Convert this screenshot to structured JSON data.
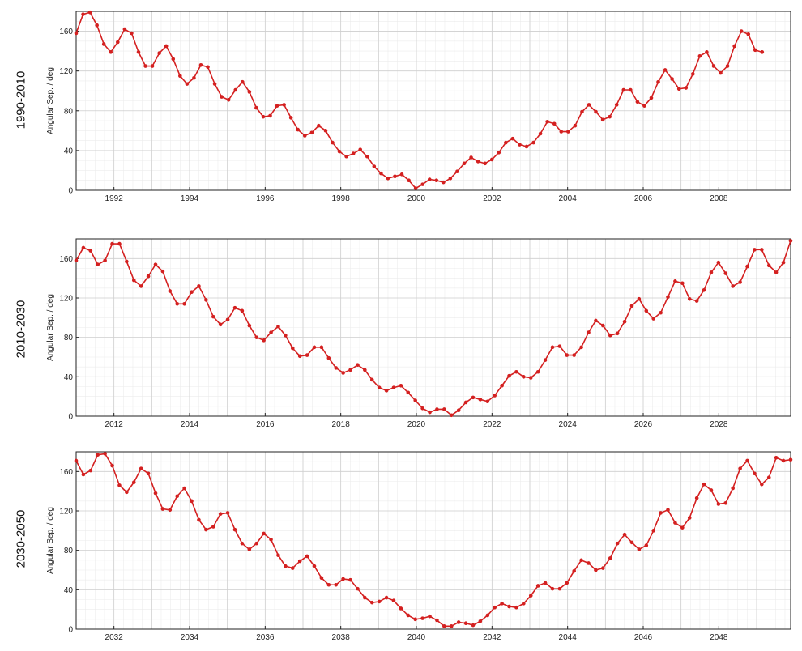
{
  "colors": {
    "line": "#d42020",
    "grid_major": "#cfcfcf",
    "grid_minor": "#ececec",
    "frame": "#222222"
  },
  "chart_data": [
    {
      "type": "line",
      "period_label": "1990-2010",
      "ylabel": "Angular Sep. / deg",
      "xlim": [
        1991.0,
        2009.9
      ],
      "ylim": [
        0,
        180
      ],
      "x_ticks": [
        1992,
        1994,
        1996,
        1998,
        2000,
        2002,
        2004,
        2006,
        2008
      ],
      "y_ticks": [
        0,
        40,
        80,
        120,
        160
      ],
      "grid": true,
      "series": [
        {
          "x_start": 1991.0,
          "x_step": 0.1833,
          "values": [
            158,
            177,
            179,
            166,
            147,
            139,
            149,
            162,
            158,
            139,
            125,
            125,
            138,
            145,
            132,
            115,
            107,
            113,
            126,
            124,
            107,
            94,
            91,
            101,
            109,
            99,
            83,
            74,
            75,
            85,
            86,
            73,
            61,
            55,
            58,
            65,
            60,
            48,
            39,
            34,
            37,
            41,
            34,
            24,
            17,
            12,
            14,
            16,
            10,
            2,
            6,
            11,
            10,
            8,
            12,
            19,
            27,
            33,
            29,
            27,
            31,
            38,
            48,
            52,
            46,
            44,
            48,
            57,
            69,
            67,
            59,
            59,
            65,
            79,
            86,
            79,
            71,
            74,
            86,
            101,
            101,
            89,
            85,
            93,
            109,
            121,
            112,
            102,
            103,
            117,
            135,
            139,
            125,
            118,
            125,
            145,
            160,
            157,
            141,
            139
          ]
        }
      ]
    },
    {
      "type": "line",
      "period_label": "2010-2030",
      "ylabel": "Angular Sep. / deg",
      "xlim": [
        2011.0,
        2029.9
      ],
      "ylim": [
        0,
        180
      ],
      "x_ticks": [
        2012,
        2014,
        2016,
        2018,
        2020,
        2022,
        2024,
        2026,
        2028
      ],
      "y_ticks": [
        0,
        40,
        80,
        120,
        160
      ],
      "grid": true,
      "series": [
        {
          "x_start": 2011.0,
          "x_step": 0.1909,
          "values": [
            158,
            171,
            168,
            154,
            158,
            175,
            175,
            157,
            138,
            132,
            142,
            154,
            147,
            127,
            114,
            114,
            126,
            132,
            118,
            101,
            93,
            98,
            110,
            107,
            92,
            80,
            77,
            85,
            91,
            82,
            69,
            61,
            62,
            70,
            70,
            59,
            49,
            44,
            47,
            52,
            47,
            37,
            29,
            26,
            29,
            31,
            24,
            16,
            8,
            4,
            7,
            7,
            1,
            6,
            14,
            19,
            17,
            15,
            21,
            31,
            41,
            45,
            40,
            39,
            45,
            57,
            70,
            71,
            62,
            62,
            70,
            85,
            97,
            92,
            82,
            84,
            96,
            112,
            119,
            107,
            99,
            105,
            121,
            137,
            135,
            119,
            117,
            128,
            146,
            156,
            145,
            132,
            136,
            152,
            169,
            169,
            153,
            146,
            156,
            178
          ]
        }
      ]
    },
    {
      "type": "line",
      "period_label": "2030-2050",
      "ylabel": "Angular Sep. / deg",
      "xlim": [
        2031.0,
        2049.9
      ],
      "ylim": [
        0,
        180
      ],
      "x_ticks": [
        2032,
        2034,
        2036,
        2038,
        2040,
        2042,
        2044,
        2046,
        2048
      ],
      "y_ticks": [
        0,
        40,
        80,
        120,
        160
      ],
      "grid": true,
      "series": [
        {
          "x_start": 2031.0,
          "x_step": 0.1909,
          "values": [
            171,
            157,
            161,
            177,
            178,
            166,
            146,
            139,
            149,
            163,
            158,
            138,
            122,
            121,
            135,
            143,
            130,
            111,
            101,
            104,
            117,
            118,
            101,
            87,
            81,
            87,
            97,
            91,
            75,
            64,
            62,
            69,
            74,
            64,
            52,
            45,
            45,
            51,
            50,
            41,
            32,
            27,
            28,
            32,
            29,
            21,
            14,
            10,
            11,
            13,
            9,
            3,
            3,
            7,
            6,
            4,
            8,
            14,
            22,
            26,
            23,
            22,
            26,
            34,
            44,
            47,
            41,
            41,
            47,
            59,
            70,
            67,
            60,
            62,
            72,
            87,
            96,
            88,
            81,
            85,
            100,
            118,
            121,
            108,
            103,
            113,
            133,
            147,
            141,
            127,
            128,
            143,
            163,
            171,
            158,
            147,
            154,
            174,
            171,
            172
          ]
        }
      ]
    }
  ]
}
